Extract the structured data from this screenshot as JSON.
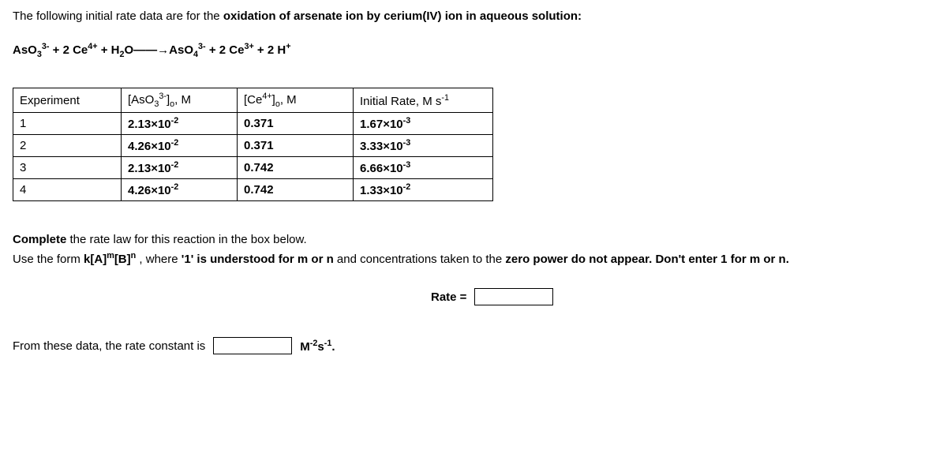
{
  "intro_prefix": "The following initial rate data are for the ",
  "intro_bold": "oxidation of arsenate ion by cerium(IV) ion in aqueous solution:",
  "equation_html": "AsO<sub>3</sub><sup>3-</sup> + 2 Ce<sup>4+</sup> + H<sub>2</sub>O——→AsO<sub>4</sub><sup>3-</sup> + 2 Ce<sup>3+</sup> + 2 H<sup>+</sup>",
  "table": {
    "headers": {
      "h0": "Experiment",
      "h1_html": "[AsO<sub>3</sub><sup>3-</sup>]<sub>o</sub>, M",
      "h2_html": "[Ce<sup>4+</sup>]<sub>o</sub>, M",
      "h3_html": "Initial Rate, M s<sup>-1</sup>"
    },
    "rows": [
      {
        "exp": "1",
        "a_html": "2.13<span class='mult'>×</span>10<sup>-2</sup>",
        "b": "0.371",
        "r_html": "1.67<span class='mult'>×</span>10<sup>-3</sup>"
      },
      {
        "exp": "2",
        "a_html": "4.26<span class='mult'>×</span>10<sup>-2</sup>",
        "b": "0.371",
        "r_html": "3.33<span class='mult'>×</span>10<sup>-3</sup>"
      },
      {
        "exp": "3",
        "a_html": "2.13<span class='mult'>×</span>10<sup>-2</sup>",
        "b": "0.742",
        "r_html": "6.66<span class='mult'>×</span>10<sup>-3</sup>"
      },
      {
        "exp": "4",
        "a_html": "4.26<span class='mult'>×</span>10<sup>-2</sup>",
        "b": "0.742",
        "r_html": "1.33<span class='mult'>×</span>10<sup>-2</sup>"
      }
    ]
  },
  "complete": {
    "line1_html": "<span class='bold'>Complete</span> the rate law for this reaction in the box below.",
    "line2_html": "Use the form <span class='bold'>k[A]<sup>m</sup>[B]<sup>n</sup></span> , where <span class='bold'>'1' is understood for m or n</span> and concentrations taken to the <span class='bold'>zero power do not appear. Don't enter 1 for m or n.</span>"
  },
  "rate_label": "Rate =",
  "constant_prefix": "From these data, the rate constant is",
  "units_html": "M<sup>-2</sup>s<sup>-1</sup>."
}
